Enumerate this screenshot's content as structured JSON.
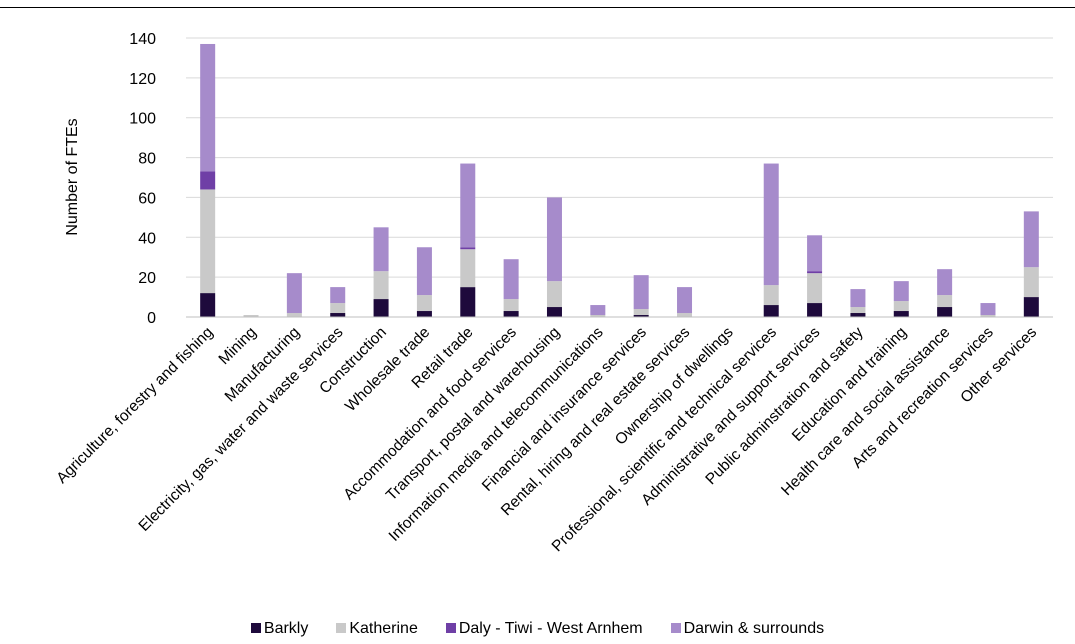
{
  "chart_data": {
    "type": "bar",
    "stacked": true,
    "title": "",
    "xlabel": "",
    "ylabel": "Number of FTEs",
    "ylim": [
      0,
      140
    ],
    "yticks": [
      0,
      20,
      40,
      60,
      80,
      100,
      120,
      140
    ],
    "grid": true,
    "legend_position": "bottom",
    "categories": [
      "Agriculture, forestry and fishing",
      "Mining",
      "Manufacturing",
      "Electricity, gas, water and waste services",
      "Construction",
      "Wholesale trade",
      "Retail trade",
      "Accommodation and food services",
      "Transport, postal and warehousing",
      "Information media and telecommunications",
      "Financial and insurance services",
      "Rental, hiring and real estate services",
      "Ownership of dwellings",
      "Professional, scientific and technical services",
      "Administrative and support services",
      "Public adminstration and safety",
      "Education and training",
      "Health care and social assistance",
      "Arts and recreation services",
      "Other services"
    ],
    "series": [
      {
        "name": "Barkly",
        "color": "#1e0a3c",
        "values": [
          12,
          0,
          0,
          2,
          9,
          3,
          15,
          3,
          5,
          0,
          1,
          0,
          0,
          6,
          7,
          2,
          3,
          5,
          0,
          10
        ]
      },
      {
        "name": "Katherine",
        "color": "#c9c9c9",
        "values": [
          52,
          1,
          2,
          5,
          14,
          8,
          19,
          6,
          13,
          1,
          3,
          2,
          0,
          10,
          15,
          3,
          5,
          6,
          1,
          15
        ]
      },
      {
        "name": "Daly - Tiwi - West Arnhem",
        "color": "#6f3fa6",
        "values": [
          9,
          0,
          0,
          0,
          0,
          0,
          1,
          0,
          0,
          0,
          0,
          0,
          0,
          0,
          1,
          0,
          0,
          0,
          0,
          0
        ]
      },
      {
        "name": "Darwin & surrounds",
        "color": "#a68bcb",
        "values": [
          64,
          0,
          20,
          8,
          22,
          24,
          42,
          20,
          42,
          5,
          17,
          13,
          0,
          61,
          18,
          9,
          10,
          13,
          6,
          28
        ]
      }
    ]
  }
}
